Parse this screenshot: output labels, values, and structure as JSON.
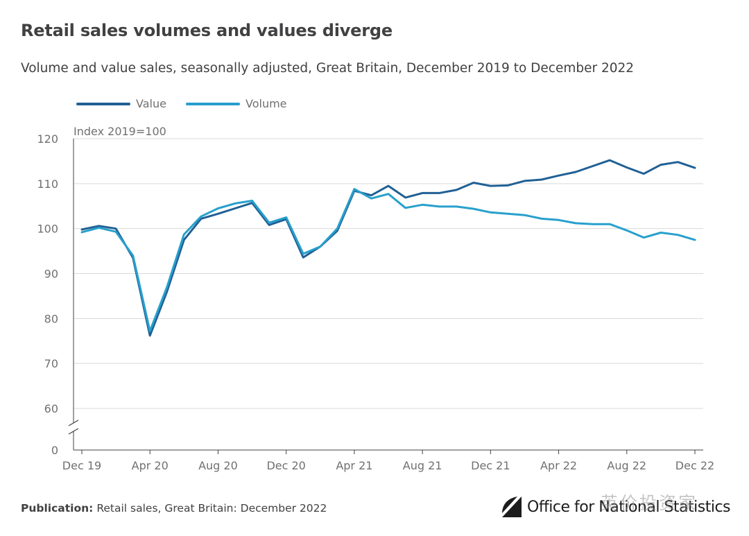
{
  "title": "Retail sales volumes and values diverge",
  "subtitle": "Volume and value sales, seasonally adjusted, Great Britain, December 2019 to December 2022",
  "footer": {
    "publication_label": "Publication:",
    "publication_text": "Retail sales, Great Britain: December 2022"
  },
  "logo": {
    "text": "Office for National Statistics"
  },
  "watermark": "英价投资家",
  "colors": {
    "value": "#206095",
    "volume": "#27a0cc",
    "grid": "#d9d9d9",
    "axis": "#414042",
    "tick_text": "#707071"
  },
  "chart_data": {
    "type": "line",
    "ylabel": "Index 2019=100",
    "ylim": [
      0,
      120
    ],
    "yticks": [
      0,
      60,
      70,
      80,
      90,
      100,
      110,
      120
    ],
    "axis_break": true,
    "grid": true,
    "legend_position": "top-left",
    "x": [
      "Dec 19",
      "Jan 20",
      "Feb 20",
      "Mar 20",
      "Apr 20",
      "May 20",
      "Jun 20",
      "Jul 20",
      "Aug 20",
      "Sep 20",
      "Oct 20",
      "Nov 20",
      "Dec 20",
      "Jan 21",
      "Feb 21",
      "Mar 21",
      "Apr 21",
      "May 21",
      "Jun 21",
      "Jul 21",
      "Aug 21",
      "Sep 21",
      "Oct 21",
      "Nov 21",
      "Dec 21",
      "Jan 22",
      "Feb 22",
      "Mar 22",
      "Apr 22",
      "May 22",
      "Jun 22",
      "Jul 22",
      "Aug 22",
      "Sep 22",
      "Oct 22",
      "Nov 22",
      "Dec 22"
    ],
    "xtick_labels": [
      "Dec 19",
      "Apr 20",
      "Aug 20",
      "Dec 20",
      "Apr 21",
      "Aug 21",
      "Dec 21",
      "Apr 22",
      "Aug 22",
      "Dec 22"
    ],
    "series": [
      {
        "name": "Value",
        "values": [
          99.8,
          100.6,
          100.0,
          93.5,
          76.2,
          86.0,
          97.5,
          102.2,
          103.3,
          104.5,
          105.7,
          100.8,
          102.1,
          93.6,
          96.0,
          99.5,
          108.4,
          107.4,
          109.5,
          106.9,
          107.9,
          107.9,
          108.6,
          110.2,
          109.5,
          109.6,
          110.6,
          110.9,
          111.8,
          112.6,
          113.9,
          115.2,
          113.6,
          112.2,
          114.2,
          114.8,
          113.5
        ]
      },
      {
        "name": "Volume",
        "values": [
          99.2,
          100.2,
          99.3,
          94.0,
          77.2,
          87.0,
          98.7,
          102.7,
          104.5,
          105.6,
          106.2,
          101.3,
          102.5,
          94.4,
          96.0,
          100.0,
          108.8,
          106.7,
          107.7,
          104.6,
          105.3,
          104.9,
          104.9,
          104.4,
          103.6,
          103.3,
          103.0,
          102.2,
          101.9,
          101.2,
          101.0,
          101.0,
          99.6,
          98.0,
          99.1,
          98.6,
          97.5
        ]
      }
    ]
  }
}
